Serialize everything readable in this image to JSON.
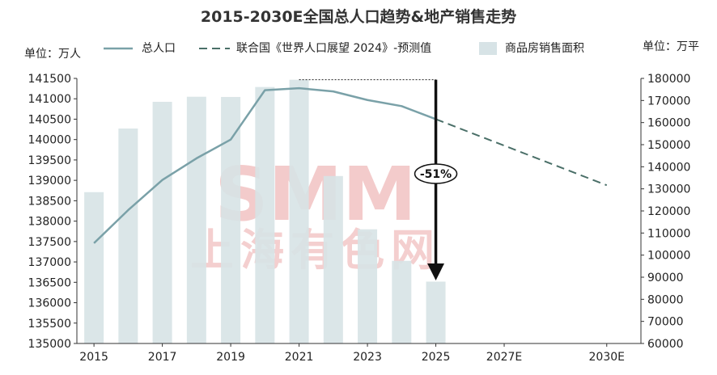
{
  "chart_data": {
    "type": "bar+line",
    "title": "2015-2030E全国总人口趋势&地产销售走势",
    "left_axis": {
      "unit_label": "单位：万人",
      "range": [
        135000,
        141500
      ],
      "ticks": [
        135000,
        135500,
        136000,
        136500,
        137000,
        137500,
        138000,
        138500,
        139000,
        139500,
        140000,
        140500,
        141000,
        141500
      ]
    },
    "right_axis": {
      "unit_label": "单位：万平",
      "range": [
        60000,
        180000
      ],
      "ticks": [
        60000,
        70000,
        80000,
        90000,
        100000,
        110000,
        120000,
        130000,
        140000,
        150000,
        160000,
        170000,
        180000
      ]
    },
    "x_labels": [
      "2015",
      "2017",
      "2019",
      "2021",
      "2023",
      "2025",
      "2027E",
      "2030E"
    ],
    "x_label_years": [
      2015,
      2017,
      2019,
      2021,
      2023,
      2025,
      2027,
      2030
    ],
    "legend": {
      "population": "总人口",
      "forecast": "联合国《世界人口展望 2024》-预测值",
      "sales": "商品房销售面积"
    },
    "series": [
      {
        "name": "商品房销售面积",
        "kind": "bar",
        "axis": "right",
        "color": "#d7e3e6",
        "x": [
          2015,
          2016,
          2017,
          2018,
          2019,
          2020,
          2021,
          2022,
          2023,
          2024,
          2025
        ],
        "values": [
          128500,
          157300,
          169400,
          171700,
          171600,
          176100,
          179400,
          135800,
          111700,
          97400,
          88000
        ]
      },
      {
        "name": "总人口",
        "kind": "line",
        "axis": "left",
        "color": "#7aa1a8",
        "x": [
          2015,
          2016,
          2017,
          2018,
          2019,
          2020,
          2021,
          2022,
          2023,
          2024,
          2025
        ],
        "values": [
          137460,
          138270,
          139010,
          139540,
          140000,
          141210,
          141260,
          141180,
          140970,
          140820,
          140500
        ]
      },
      {
        "name": "联合国《世界人口展望 2024》-预测值",
        "kind": "dashed-line",
        "axis": "left",
        "color": "#4a6f68",
        "x": [
          2025,
          2030
        ],
        "values": [
          140500,
          138880
        ]
      }
    ],
    "annotation": {
      "text": "-51%",
      "from_year": 2021,
      "to_year": 2025,
      "from_value": 179400,
      "to_value": 88000
    },
    "watermark": {
      "text": "SMM",
      "subtext": "上海有色网"
    }
  }
}
